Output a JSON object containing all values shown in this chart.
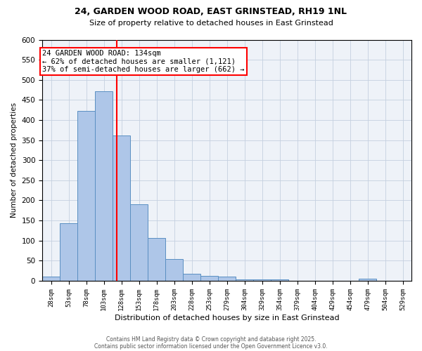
{
  "title1": "24, GARDEN WOOD ROAD, EAST GRINSTEAD, RH19 1NL",
  "title2": "Size of property relative to detached houses in East Grinstead",
  "xlabel": "Distribution of detached houses by size in East Grinstead",
  "ylabel": "Number of detached properties",
  "bin_edges": [
    28,
    53,
    78,
    103,
    128,
    153,
    178,
    203,
    228,
    253,
    278,
    303,
    328,
    353,
    378,
    403,
    428,
    453,
    478,
    503,
    528,
    553
  ],
  "bar_heights": [
    10,
    143,
    422,
    472,
    362,
    191,
    106,
    54,
    17,
    13,
    10,
    4,
    4,
    3,
    0,
    0,
    0,
    0,
    5,
    0,
    0
  ],
  "bar_color": "#aec6e8",
  "bar_edge_color": "#5a8fc2",
  "vline_x": 134,
  "vline_color": "red",
  "ylim": [
    0,
    600
  ],
  "yticks": [
    0,
    50,
    100,
    150,
    200,
    250,
    300,
    350,
    400,
    450,
    500,
    550,
    600
  ],
  "annotation_text": "24 GARDEN WOOD ROAD: 134sqm\n← 62% of detached houses are smaller (1,121)\n37% of semi-detached houses are larger (662) →",
  "footer_text1": "Contains HM Land Registry data © Crown copyright and database right 2025.",
  "footer_text2": "Contains public sector information licensed under the Open Government Licence v3.0.",
  "bg_color": "#eef2f8",
  "grid_color": "#c5d0e0",
  "tick_labels": [
    "28sqm",
    "53sqm",
    "78sqm",
    "103sqm",
    "128sqm",
    "153sqm",
    "178sqm",
    "203sqm",
    "228sqm",
    "253sqm",
    "279sqm",
    "304sqm",
    "329sqm",
    "354sqm",
    "379sqm",
    "404sqm",
    "429sqm",
    "454sqm",
    "479sqm",
    "504sqm",
    "529sqm"
  ]
}
